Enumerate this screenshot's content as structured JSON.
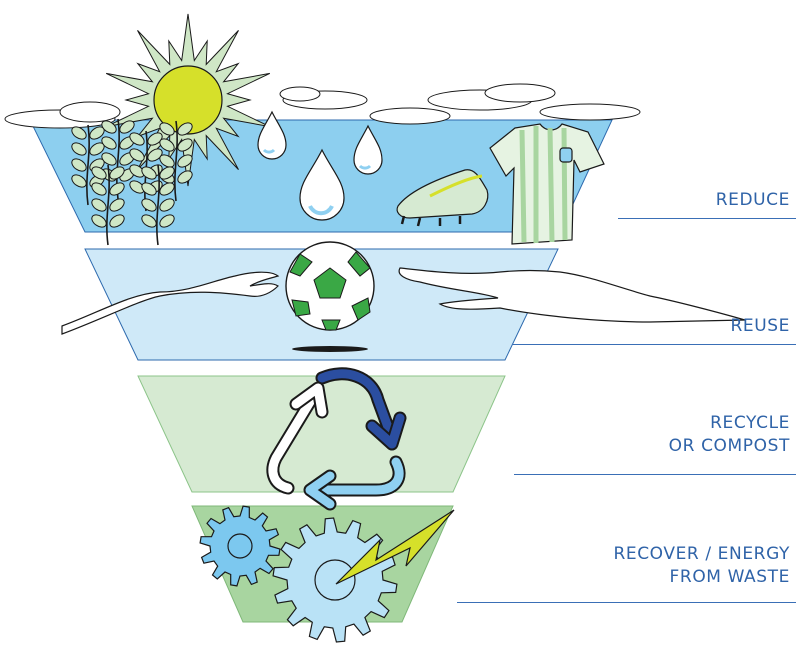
{
  "levels": [
    {
      "id": "reduce",
      "lines": [
        "REDUCE"
      ],
      "fill": "#8dcfef"
    },
    {
      "id": "reuse",
      "lines": [
        "REUSE"
      ],
      "fill": "#cfe9f8"
    },
    {
      "id": "recycle",
      "lines": [
        "RECYCLE",
        "OR COMPOST"
      ],
      "fill": "#d6ead2"
    },
    {
      "id": "recover",
      "lines": [
        "RECOVER / ENERGY",
        "FROM WASTE"
      ],
      "fill": "#a8d5a0"
    }
  ],
  "colors": {
    "label_text": "#2f63a8",
    "rule_line": "#3a6fb6",
    "sun": "#d6e02a",
    "sun_rays": "#cfe7c6",
    "water_drop": "#8fd0f1",
    "leaf": "#cfe7c6",
    "ball_patch": "#3aa845",
    "arrow_dark": "#2b4ea0",
    "arrow_light": "#8fd0f1",
    "gear_blue": "#7cc8ef",
    "gear_light": "#b9e2f6",
    "bolt": "#d6e02a"
  },
  "icons": [
    "sun-icon",
    "cloud-icon",
    "leaf-icon",
    "water-drop-icon",
    "football-boot-icon",
    "jersey-icon",
    "soccer-ball-icon",
    "hand-icon",
    "recycle-arrows-icon",
    "gear-icon",
    "lightning-bolt-icon"
  ]
}
